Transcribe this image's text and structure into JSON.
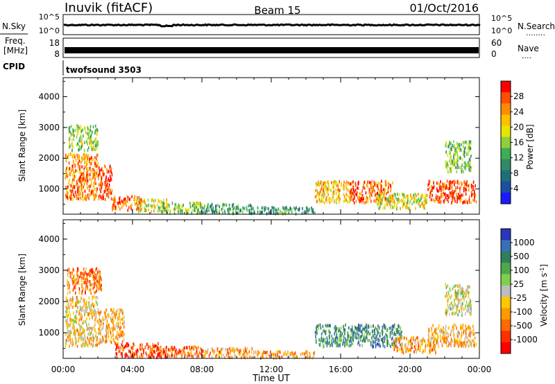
{
  "header": {
    "station": "Inuvik (fitACF)",
    "beam": "Beam 15",
    "date": "01/Oct/2016"
  },
  "strip_panels": {
    "nsky": {
      "left_label": "N.Sky",
      "left_ticks": [
        "10^5",
        "10^0"
      ],
      "right_label": "N.Search",
      "right_ticks": [
        "10^5",
        "10^0"
      ],
      "right_legend_marker": "........"
    },
    "freq": {
      "left_label": "Freq.",
      "left_unit": "[MHz]",
      "left_ticks": [
        "18",
        "8"
      ],
      "right_label": "Nave",
      "right_ticks": [
        "60",
        "0"
      ],
      "right_legend_marker": "...."
    },
    "cpid": {
      "left_label": "CPID",
      "text": "twofsound 3503"
    }
  },
  "x_axis": {
    "label": "Time UT",
    "ticks": [
      "00:00",
      "04:00",
      "08:00",
      "12:00",
      "16:00",
      "20:00",
      "00:00"
    ]
  },
  "chart_data": [
    {
      "type": "heatmap",
      "panel": "power",
      "ylabel": "Slant Range [km]",
      "yticks": [
        "4000",
        "3000",
        "2000",
        "1000"
      ],
      "ylim": [
        180,
        4620
      ],
      "xlim_hours": [
        0,
        24
      ],
      "colorbar": {
        "label": "Power [dB]",
        "ticks": [
          "28",
          "24",
          "20",
          "16",
          "12",
          "8",
          "4"
        ],
        "colors": [
          "#ff0000",
          "#ff4e00",
          "#ff8a00",
          "#ffbf00",
          "#e5e500",
          "#8fcf3a",
          "#3cae54",
          "#2f8a68",
          "#1c6f7a",
          "#1a4fa0",
          "#1a1aff"
        ]
      },
      "series": [
        {
          "values": [
            [
              0.1,
              2.0,
              700,
              2200,
              0.8
            ],
            [
              0.3,
              2.0,
              2300,
              3100,
              0.5
            ],
            [
              2.0,
              2.8,
              700,
              1800,
              0.95
            ],
            [
              2.8,
              4.5,
              350,
              800,
              0.85
            ],
            [
              4.2,
              6.0,
              300,
              700,
              0.6
            ],
            [
              5.5,
              8.0,
              250,
              600,
              0.5
            ],
            [
              8.0,
              11.0,
              250,
              550,
              0.35
            ],
            [
              11.0,
              14.5,
              230,
              450,
              0.3
            ],
            [
              14.5,
              16.5,
              600,
              1300,
              0.7
            ],
            [
              16.5,
              19.0,
              600,
              1300,
              0.85
            ],
            [
              18.0,
              21.0,
              400,
              900,
              0.6
            ],
            [
              21.0,
              23.8,
              600,
              1300,
              0.9
            ],
            [
              22.0,
              23.5,
              1600,
              2600,
              0.45
            ]
          ]
        }
      ]
    },
    {
      "type": "heatmap",
      "panel": "velocity",
      "ylabel": "Slant Range [km]",
      "yticks": [
        "4000",
        "3000",
        "2000",
        "1000"
      ],
      "ylim": [
        180,
        4620
      ],
      "xlim_hours": [
        0,
        24
      ],
      "colorbar": {
        "label": "Velocity [m s^-1]",
        "ticks": [
          "1000",
          "500",
          "100",
          "25",
          "-25",
          "-100",
          "-500",
          "-1000"
        ],
        "colors": [
          "#2838b8",
          "#3a6fb8",
          "#2f7f5a",
          "#4ea84a",
          "#7fd04a",
          "#bdbdbd",
          "#ffc800",
          "#ff9900",
          "#ff6a00",
          "#ff3000",
          "#ff0000"
        ]
      },
      "series": [
        {
          "values": [
            [
              0.1,
              2.0,
              600,
              2200,
              0.4
            ],
            [
              0.2,
              2.2,
              2300,
              3100,
              0.2
            ],
            [
              2.0,
              3.5,
              700,
              1800,
              0.35
            ],
            [
              3.0,
              5.5,
              250,
              700,
              0.1
            ],
            [
              5.0,
              8.0,
              250,
              600,
              0.15
            ],
            [
              8.0,
              11.0,
              250,
              550,
              0.3
            ],
            [
              11.0,
              14.5,
              230,
              450,
              0.3
            ],
            [
              14.5,
              17.0,
              600,
              1300,
              0.75
            ],
            [
              17.0,
              19.5,
              600,
              1300,
              0.8
            ],
            [
              19.0,
              21.5,
              400,
              900,
              0.3
            ],
            [
              21.0,
              23.8,
              600,
              1300,
              0.35
            ],
            [
              22.0,
              23.5,
              1600,
              2600,
              0.5
            ]
          ]
        }
      ]
    }
  ]
}
